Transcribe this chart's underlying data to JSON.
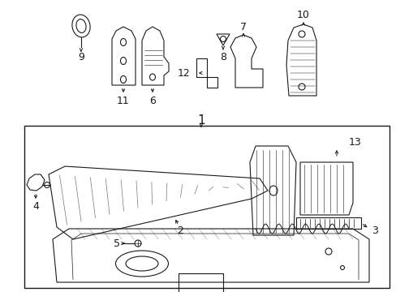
{
  "background_color": "#ffffff",
  "line_color": "#1a1a1a",
  "fig_width": 4.89,
  "fig_height": 3.6,
  "dpi": 100,
  "font_size": 9,
  "font_size_large": 11
}
